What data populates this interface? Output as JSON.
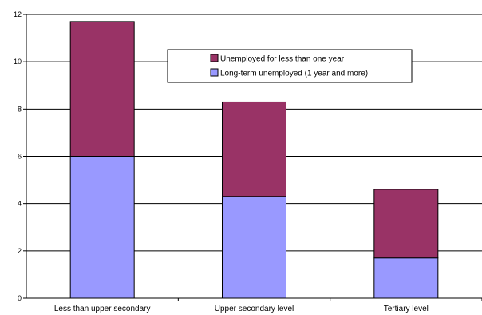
{
  "chart_data": {
    "type": "bar",
    "stacked": true,
    "categories": [
      "Less than upper secondary",
      "Upper secondary level",
      "Tertiary level"
    ],
    "series": [
      {
        "name": "Long-term unemployed (1 year and more)",
        "values": [
          6.0,
          4.3,
          1.7
        ],
        "color": "#9999ff"
      },
      {
        "name": "Unemployed for less than one year",
        "values": [
          5.7,
          4.0,
          2.9
        ],
        "color": "#993366"
      }
    ],
    "ylim": [
      0,
      12
    ],
    "yticks": [
      "0",
      "2",
      "4",
      "6",
      "8",
      "10",
      "12"
    ],
    "grid": true,
    "legend_position": "top-center",
    "legend_order": [
      1,
      0
    ],
    "title": "",
    "xlabel": "",
    "ylabel": ""
  }
}
